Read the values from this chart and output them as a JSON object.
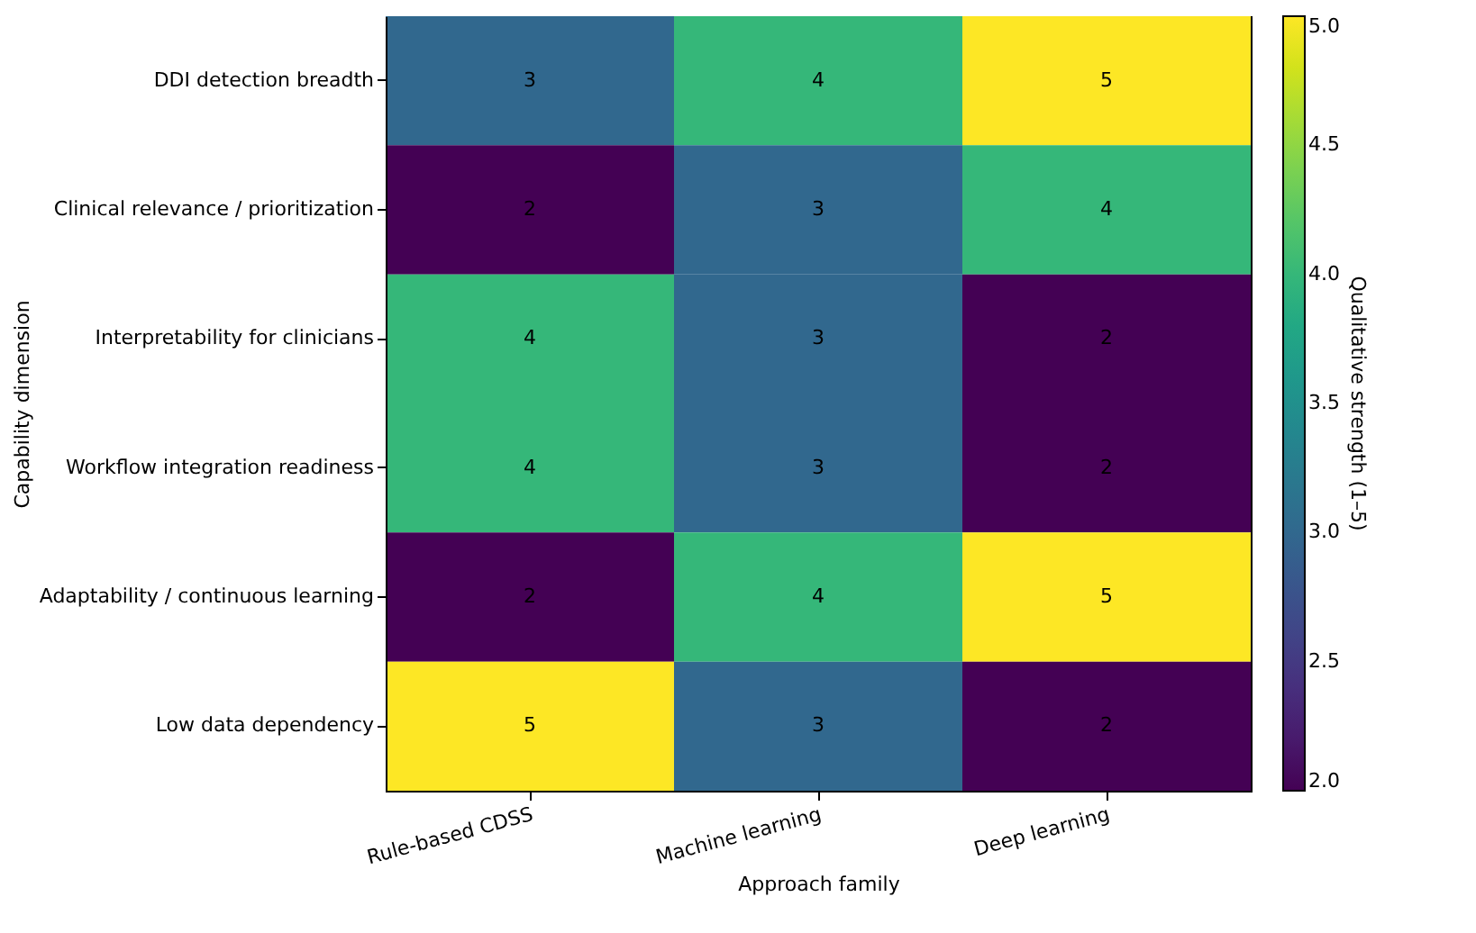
{
  "chart_data": {
    "type": "heatmap",
    "xlabel": "Approach family",
    "ylabel": "Capability dimension",
    "clabel": "Qualitative strength (1–5)",
    "categories": [
      "Rule-based CDSS",
      "Machine learning",
      "Deep learning"
    ],
    "y_categories": [
      "DDI detection breadth",
      "Clinical relevance / prioritization",
      "Interpretability for clinicians",
      "Workflow integration readiness",
      "Adaptability / continuous learning",
      "Low data dependency"
    ],
    "cells": [
      [
        3,
        4,
        5
      ],
      [
        2,
        3,
        4
      ],
      [
        4,
        3,
        2
      ],
      [
        4,
        3,
        2
      ],
      [
        2,
        4,
        5
      ],
      [
        5,
        3,
        2
      ]
    ],
    "clim": [
      2,
      5
    ],
    "cticks": [
      {
        "value": 2,
        "label": "2.0"
      },
      {
        "value": 2.5,
        "label": "2.5"
      },
      {
        "value": 3,
        "label": "3.0"
      },
      {
        "value": 3.5,
        "label": "3.5"
      },
      {
        "value": 4,
        "label": "4.0"
      },
      {
        "value": 4.5,
        "label": "4.5"
      },
      {
        "value": 5,
        "label": "5.0"
      }
    ],
    "data_labels": true,
    "grid": false
  }
}
